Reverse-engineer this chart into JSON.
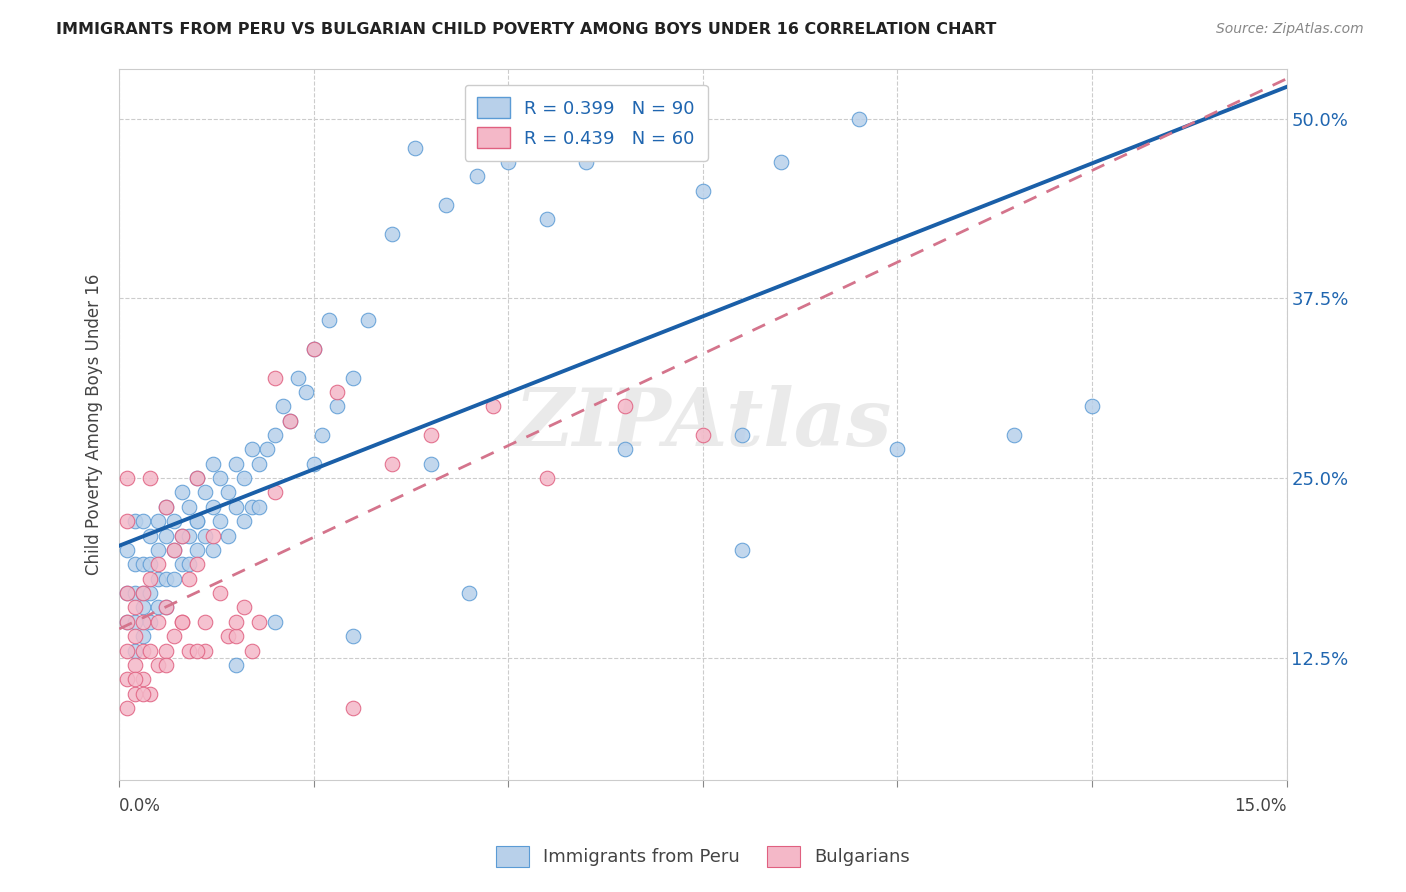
{
  "title": "IMMIGRANTS FROM PERU VS BULGARIAN CHILD POVERTY AMONG BOYS UNDER 16 CORRELATION CHART",
  "source": "Source: ZipAtlas.com",
  "ylabel": "Child Poverty Among Boys Under 16",
  "ytick_labels": [
    "12.5%",
    "25.0%",
    "37.5%",
    "50.0%"
  ],
  "ytick_values": [
    0.125,
    0.25,
    0.375,
    0.5
  ],
  "xmin": 0.0,
  "xmax": 0.15,
  "ymin": 0.04,
  "ymax": 0.535,
  "peru_color": "#b8d0ea",
  "peru_edge": "#5b9bd5",
  "bulg_color": "#f4b8c8",
  "bulg_edge": "#e06080",
  "trendline_peru_color": "#1a5fa8",
  "trendline_bulg_color": "#d4748c",
  "watermark": "ZIPAtlas",
  "legend_peru": "R = 0.399   N = 90",
  "legend_bulg": "R = 0.439   N = 60",
  "label_peru": "Immigrants from Peru",
  "label_bulg": "Bulgarians",
  "peru_x": [
    0.001,
    0.001,
    0.001,
    0.002,
    0.002,
    0.002,
    0.002,
    0.002,
    0.003,
    0.003,
    0.003,
    0.003,
    0.003,
    0.004,
    0.004,
    0.004,
    0.004,
    0.005,
    0.005,
    0.005,
    0.005,
    0.006,
    0.006,
    0.006,
    0.006,
    0.007,
    0.007,
    0.007,
    0.008,
    0.008,
    0.008,
    0.009,
    0.009,
    0.009,
    0.01,
    0.01,
    0.01,
    0.011,
    0.011,
    0.012,
    0.012,
    0.012,
    0.013,
    0.013,
    0.014,
    0.014,
    0.015,
    0.015,
    0.016,
    0.016,
    0.017,
    0.017,
    0.018,
    0.018,
    0.019,
    0.02,
    0.021,
    0.022,
    0.023,
    0.024,
    0.025,
    0.026,
    0.027,
    0.028,
    0.03,
    0.032,
    0.035,
    0.038,
    0.042,
    0.046,
    0.05,
    0.055,
    0.06,
    0.068,
    0.075,
    0.085,
    0.095,
    0.01,
    0.025,
    0.04,
    0.065,
    0.08,
    0.1,
    0.115,
    0.125,
    0.08,
    0.045,
    0.03,
    0.02,
    0.015
  ],
  "peru_y": [
    0.2,
    0.17,
    0.15,
    0.22,
    0.19,
    0.17,
    0.15,
    0.13,
    0.22,
    0.19,
    0.17,
    0.16,
    0.14,
    0.21,
    0.19,
    0.17,
    0.15,
    0.22,
    0.2,
    0.18,
    0.16,
    0.23,
    0.21,
    0.18,
    0.16,
    0.22,
    0.2,
    0.18,
    0.24,
    0.21,
    0.19,
    0.23,
    0.21,
    0.19,
    0.25,
    0.22,
    0.2,
    0.24,
    0.21,
    0.26,
    0.23,
    0.2,
    0.25,
    0.22,
    0.24,
    0.21,
    0.26,
    0.23,
    0.25,
    0.22,
    0.27,
    0.23,
    0.26,
    0.23,
    0.27,
    0.28,
    0.3,
    0.29,
    0.32,
    0.31,
    0.34,
    0.28,
    0.36,
    0.3,
    0.32,
    0.36,
    0.42,
    0.48,
    0.44,
    0.46,
    0.47,
    0.43,
    0.47,
    0.49,
    0.45,
    0.47,
    0.5,
    0.22,
    0.26,
    0.26,
    0.27,
    0.28,
    0.27,
    0.28,
    0.3,
    0.2,
    0.17,
    0.14,
    0.15,
    0.12
  ],
  "bulg_x": [
    0.001,
    0.001,
    0.001,
    0.001,
    0.001,
    0.002,
    0.002,
    0.002,
    0.002,
    0.003,
    0.003,
    0.003,
    0.003,
    0.004,
    0.004,
    0.004,
    0.005,
    0.005,
    0.005,
    0.006,
    0.006,
    0.006,
    0.007,
    0.007,
    0.008,
    0.008,
    0.009,
    0.009,
    0.01,
    0.01,
    0.011,
    0.011,
    0.012,
    0.013,
    0.014,
    0.015,
    0.016,
    0.017,
    0.018,
    0.02,
    0.022,
    0.025,
    0.028,
    0.03,
    0.035,
    0.04,
    0.048,
    0.055,
    0.065,
    0.075,
    0.02,
    0.015,
    0.01,
    0.008,
    0.006,
    0.004,
    0.003,
    0.002,
    0.001,
    0.001
  ],
  "bulg_y": [
    0.17,
    0.15,
    0.13,
    0.11,
    0.09,
    0.16,
    0.14,
    0.12,
    0.1,
    0.17,
    0.15,
    0.13,
    0.11,
    0.25,
    0.18,
    0.13,
    0.19,
    0.15,
    0.12,
    0.23,
    0.16,
    0.13,
    0.2,
    0.14,
    0.21,
    0.15,
    0.18,
    0.13,
    0.25,
    0.19,
    0.15,
    0.13,
    0.21,
    0.17,
    0.14,
    0.14,
    0.16,
    0.13,
    0.15,
    0.32,
    0.29,
    0.34,
    0.31,
    0.09,
    0.26,
    0.28,
    0.3,
    0.25,
    0.3,
    0.28,
    0.24,
    0.15,
    0.13,
    0.15,
    0.12,
    0.1,
    0.1,
    0.11,
    0.25,
    0.22
  ]
}
